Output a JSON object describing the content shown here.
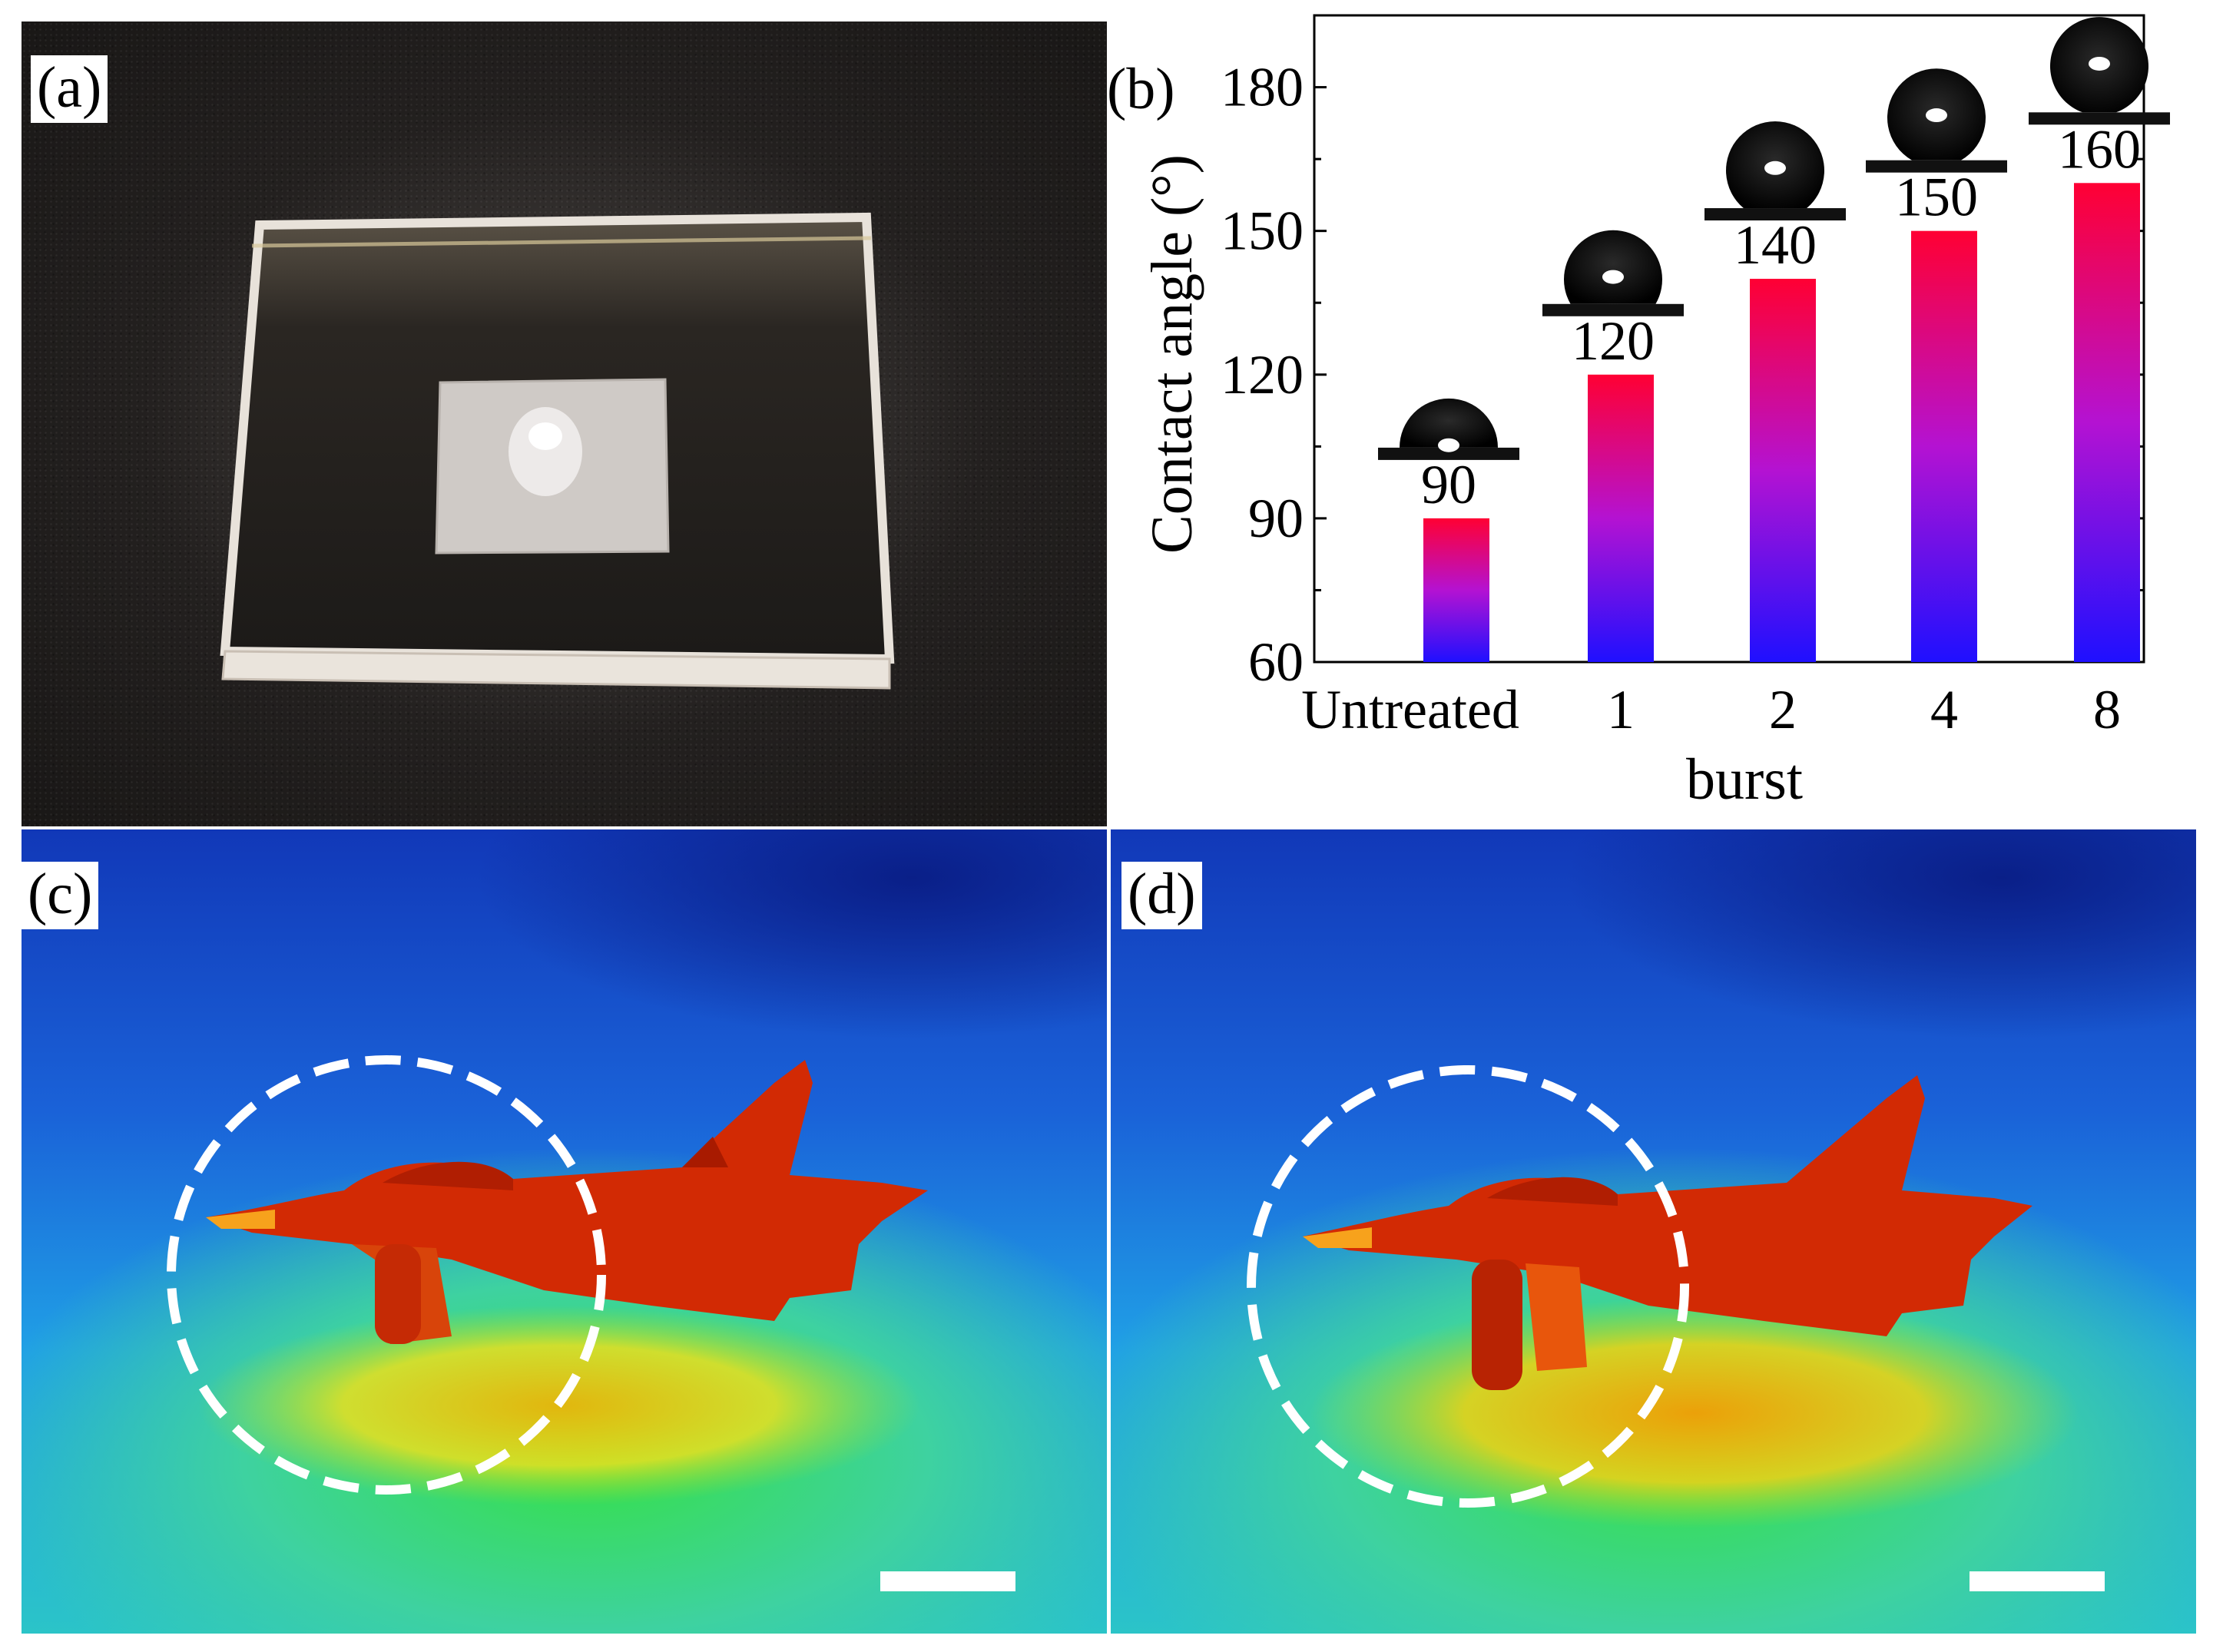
{
  "panels": {
    "a": {
      "label": "(a)"
    },
    "b": {
      "label": "(b)"
    },
    "c": {
      "label": "(c)"
    },
    "d": {
      "label": "(d)"
    }
  },
  "chart_data": {
    "type": "bar",
    "categories": [
      "Untreated",
      "1",
      "2",
      "4",
      "8"
    ],
    "values": [
      90,
      120,
      140,
      150,
      160
    ],
    "data_labels": [
      "90",
      "120",
      "140",
      "150",
      "160"
    ],
    "xlabel": "burst",
    "ylabel": "Contact angle (°)",
    "ylim": [
      60,
      195
    ],
    "yticks": [
      60,
      90,
      120,
      150,
      180
    ],
    "ytick_labels": [
      "60",
      "90",
      "120",
      "150",
      "180"
    ],
    "bar_gradient": {
      "top": "#ff0033",
      "middle": "#b412d2",
      "bottom": "#1f10ff"
    },
    "droplet_insets": true,
    "grid": false
  }
}
